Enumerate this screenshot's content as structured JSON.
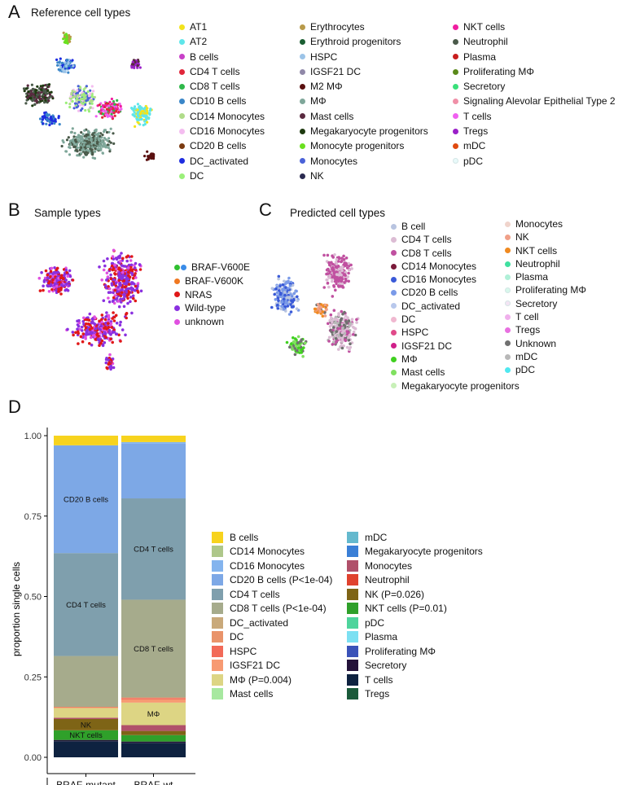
{
  "panel_a": {
    "letter": "A",
    "title": "Reference cell types",
    "legend_columns": [
      [
        {
          "label": "AT1",
          "color": "#f2e31c"
        },
        {
          "label": "AT2",
          "color": "#5fe6ea"
        },
        {
          "label": "B cells",
          "color": "#c840c8"
        },
        {
          "label": "CD4 T cells",
          "color": "#e0263a"
        },
        {
          "label": "CD8 T cells",
          "color": "#2fb84a"
        },
        {
          "label": "CD10 B cells",
          "color": "#3a86c8"
        },
        {
          "label": "CD14 Monocytes",
          "color": "#b0dc8a"
        },
        {
          "label": "CD16 Monocytes",
          "color": "#f4bdf0"
        },
        {
          "label": "CD20 B cells",
          "color": "#7a3a10"
        },
        {
          "label": "DC_activated",
          "color": "#1e2de0"
        },
        {
          "label": "DC",
          "color": "#9bf07a"
        }
      ],
      [
        {
          "label": "Erythrocytes",
          "color": "#b89a4a"
        },
        {
          "label": "Erythroid progenitors",
          "color": "#1a5e32"
        },
        {
          "label": "HSPC",
          "color": "#9cc4e8"
        },
        {
          "label": "IGSF21 DC",
          "color": "#9088a8"
        },
        {
          "label": "M2 MΦ",
          "color": "#5a1010"
        },
        {
          "label": "MΦ",
          "color": "#7fa79a"
        },
        {
          "label": "Mast cells",
          "color": "#5a2a40"
        },
        {
          "label": "Megakaryocyte progenitors",
          "color": "#1e3a10"
        },
        {
          "label": "Monocyte progenitors",
          "color": "#6ae01e"
        },
        {
          "label": "Monocytes",
          "color": "#4a62d8"
        },
        {
          "label": "NK",
          "color": "#2a2a50"
        }
      ],
      [
        {
          "label": "NKT cells",
          "color": "#f01ea0"
        },
        {
          "label": "Neutrophil",
          "color": "#4a5a4a"
        },
        {
          "label": "Plasma",
          "color": "#c81e1e"
        },
        {
          "label": "Proliferating MΦ",
          "color": "#5a8a1a"
        },
        {
          "label": "Secretory",
          "color": "#3ae07a"
        },
        {
          "label": "Signaling Alevolar Epithelial Type 2",
          "color": "#f090a8"
        },
        {
          "label": "T cells",
          "color": "#f060f0"
        },
        {
          "label": "Tregs",
          "color": "#9a20c8"
        },
        {
          "label": "mDC",
          "color": "#e04a10"
        },
        {
          "label": "pDC",
          "color": "#e8fafa"
        }
      ]
    ]
  },
  "panel_b": {
    "letter": "B",
    "title": "Sample types",
    "legend": [
      {
        "label": "BRAF-V600E",
        "color": "#30c030",
        "color2": "#3a8ce8"
      },
      {
        "label": "BRAF-V600K",
        "color": "#f07820"
      },
      {
        "label": "NRAS",
        "color": "#e01818"
      },
      {
        "label": "Wild-type",
        "color": "#8a30e0"
      },
      {
        "label": "unknown",
        "color": "#e050e0"
      }
    ]
  },
  "panel_c": {
    "letter": "C",
    "title": "Predicted cell types",
    "legend_columns": [
      [
        {
          "label": "B cell",
          "color": "#b8c4e0"
        },
        {
          "label": "CD4 T cells",
          "color": "#dcbcd4"
        },
        {
          "label": "CD8 T cells",
          "color": "#c050a0"
        },
        {
          "label": "CD14 Monocytes",
          "color": "#7a1a3a"
        },
        {
          "label": "CD16 Monocytes",
          "color": "#3a5ad8"
        },
        {
          "label": "CD20 B cells",
          "color": "#7a9ae8"
        },
        {
          "label": "DC_activated",
          "color": "#b8c8ec"
        },
        {
          "label": "DC",
          "color": "#f0b8d0"
        },
        {
          "label": "HSPC",
          "color": "#e04a8a"
        },
        {
          "label": "IGSF21 DC",
          "color": "#d0208a"
        },
        {
          "label": "MΦ",
          "color": "#40d020"
        },
        {
          "label": "Mast cells",
          "color": "#80e060"
        },
        {
          "label": "Megakaryocyte progenitors",
          "color": "#c8f0b8"
        }
      ],
      [
        {
          "label": "Monocytes",
          "color": "#f0d4cc"
        },
        {
          "label": "NK",
          "color": "#f0a088"
        },
        {
          "label": "NKT cells",
          "color": "#f08a20"
        },
        {
          "label": "Neutrophil",
          "color": "#40e0a0"
        },
        {
          "label": "Plasma",
          "color": "#b0f0d8"
        },
        {
          "label": "Proliferating MΦ",
          "color": "#d8f8ec"
        },
        {
          "label": "Secretory",
          "color": "#f4e4f4"
        },
        {
          "label": "T cell",
          "color": "#f0b0ec"
        },
        {
          "label": "Tregs",
          "color": "#e870e0"
        },
        {
          "label": "Unknown",
          "color": "#707070"
        },
        {
          "label": "mDC",
          "color": "#b8b8b8"
        },
        {
          "label": "pDC",
          "color": "#50e8f0"
        }
      ]
    ]
  },
  "panel_d": {
    "letter": "D",
    "legend_columns": [
      [
        {
          "label": "B cells",
          "color": "#f7d31e"
        },
        {
          "label": "CD14 Monocytes",
          "color": "#aec78a"
        },
        {
          "label": "CD16 Monocytes",
          "color": "#84b4ee"
        },
        {
          "label": "CD20 B cells (P<1e-04)",
          "color": "#7da8e6"
        },
        {
          "label": "CD4 T cells",
          "color": "#7f9fad"
        },
        {
          "label": "CD8 T cells (P<1e-04)",
          "color": "#a6ab8c"
        },
        {
          "label": "DC_activated",
          "color": "#c9a97a"
        },
        {
          "label": "DC",
          "color": "#e9936a"
        },
        {
          "label": "HSPC",
          "color": "#f26a58"
        },
        {
          "label": "IGSF21 DC",
          "color": "#f79a72"
        },
        {
          "label": "MΦ (P=0.004)",
          "color": "#ddd584"
        },
        {
          "label": "Mast cells",
          "color": "#a7e8a0"
        }
      ],
      [
        {
          "label": "mDC",
          "color": "#64b9ce"
        },
        {
          "label": "Megakaryocyte progenitors",
          "color": "#3a7fd6"
        },
        {
          "label": "Monocytes",
          "color": "#b0506a"
        },
        {
          "label": "Neutrophil",
          "color": "#e0422e"
        },
        {
          "label": "NK (P=0.026)",
          "color": "#7e6416"
        },
        {
          "label": "NKT cells (P=0.01)",
          "color": "#2fa02a"
        },
        {
          "label": "pDC",
          "color": "#4ed49c"
        },
        {
          "label": "Plasma",
          "color": "#7ce0f2"
        },
        {
          "label": "Proliferating MΦ",
          "color": "#3a52b8"
        },
        {
          "label": "Secretory",
          "color": "#24123a"
        },
        {
          "label": "T cells",
          "color": "#0e2240"
        },
        {
          "label": "Tregs",
          "color": "#1a5a3a"
        }
      ]
    ]
  },
  "chart_data": {
    "type": "bar",
    "stacked": true,
    "title": "",
    "xlabel": "",
    "ylabel": "proportion single cells",
    "ylim": [
      0,
      1
    ],
    "yticks": [
      "0.00",
      "0.25",
      "0.50",
      "0.75",
      "1.00"
    ],
    "categories": [
      "BRAF-mutant",
      "BRAF-wt"
    ],
    "series": [
      {
        "name": "T cells",
        "color": "#0e2240",
        "values": [
          0.05,
          0.045
        ]
      },
      {
        "name": "Secretory",
        "color": "#24123a",
        "values": [
          0.004,
          0.004
        ]
      },
      {
        "name": "NKT cells",
        "color": "#2fa02a",
        "values": [
          0.03,
          0.02
        ]
      },
      {
        "name": "NK",
        "color": "#7e6416",
        "values": [
          0.035,
          0.013
        ]
      },
      {
        "name": "Monocytes",
        "color": "#b0506a",
        "values": [
          0.004,
          0.018
        ]
      },
      {
        "name": "MΦ",
        "color": "#ddd584",
        "values": [
          0.03,
          0.07
        ]
      },
      {
        "name": "IGSF21 DC",
        "color": "#f79a72",
        "values": [
          0.002,
          0.01
        ]
      },
      {
        "name": "HSPC",
        "color": "#f26a58",
        "values": [
          0.001,
          0.004
        ]
      },
      {
        "name": "DC",
        "color": "#e9936a",
        "values": [
          0.001,
          0.002
        ]
      },
      {
        "name": "CD8 T cells",
        "color": "#a6ab8c",
        "values": [
          0.158,
          0.304
        ]
      },
      {
        "name": "CD4 T cells",
        "color": "#7f9fad",
        "values": [
          0.32,
          0.315
        ]
      },
      {
        "name": "CD20 B cells",
        "color": "#7da8e6",
        "values": [
          0.335,
          0.17
        ]
      },
      {
        "name": "CD16 Monocytes",
        "color": "#84b4ee",
        "values": [
          0.0,
          0.005
        ]
      },
      {
        "name": "B cells",
        "color": "#f7d31e",
        "values": [
          0.03,
          0.02
        ]
      }
    ],
    "bar_labels": [
      {
        "category": "BRAF-mutant",
        "series": "CD20 B cells",
        "text": "CD20 B cells"
      },
      {
        "category": "BRAF-mutant",
        "series": "CD4 T cells",
        "text": "CD4 T cells"
      },
      {
        "category": "BRAF-mutant",
        "series": "NK",
        "text": "NK"
      },
      {
        "category": "BRAF-mutant",
        "series": "NKT cells",
        "text": "NKT cells"
      },
      {
        "category": "BRAF-wt",
        "series": "CD4 T cells",
        "text": "CD4 T cells"
      },
      {
        "category": "BRAF-wt",
        "series": "CD8 T cells",
        "text": "CD8 T cells"
      },
      {
        "category": "BRAF-wt",
        "series": "MΦ",
        "text": "MΦ"
      }
    ]
  }
}
